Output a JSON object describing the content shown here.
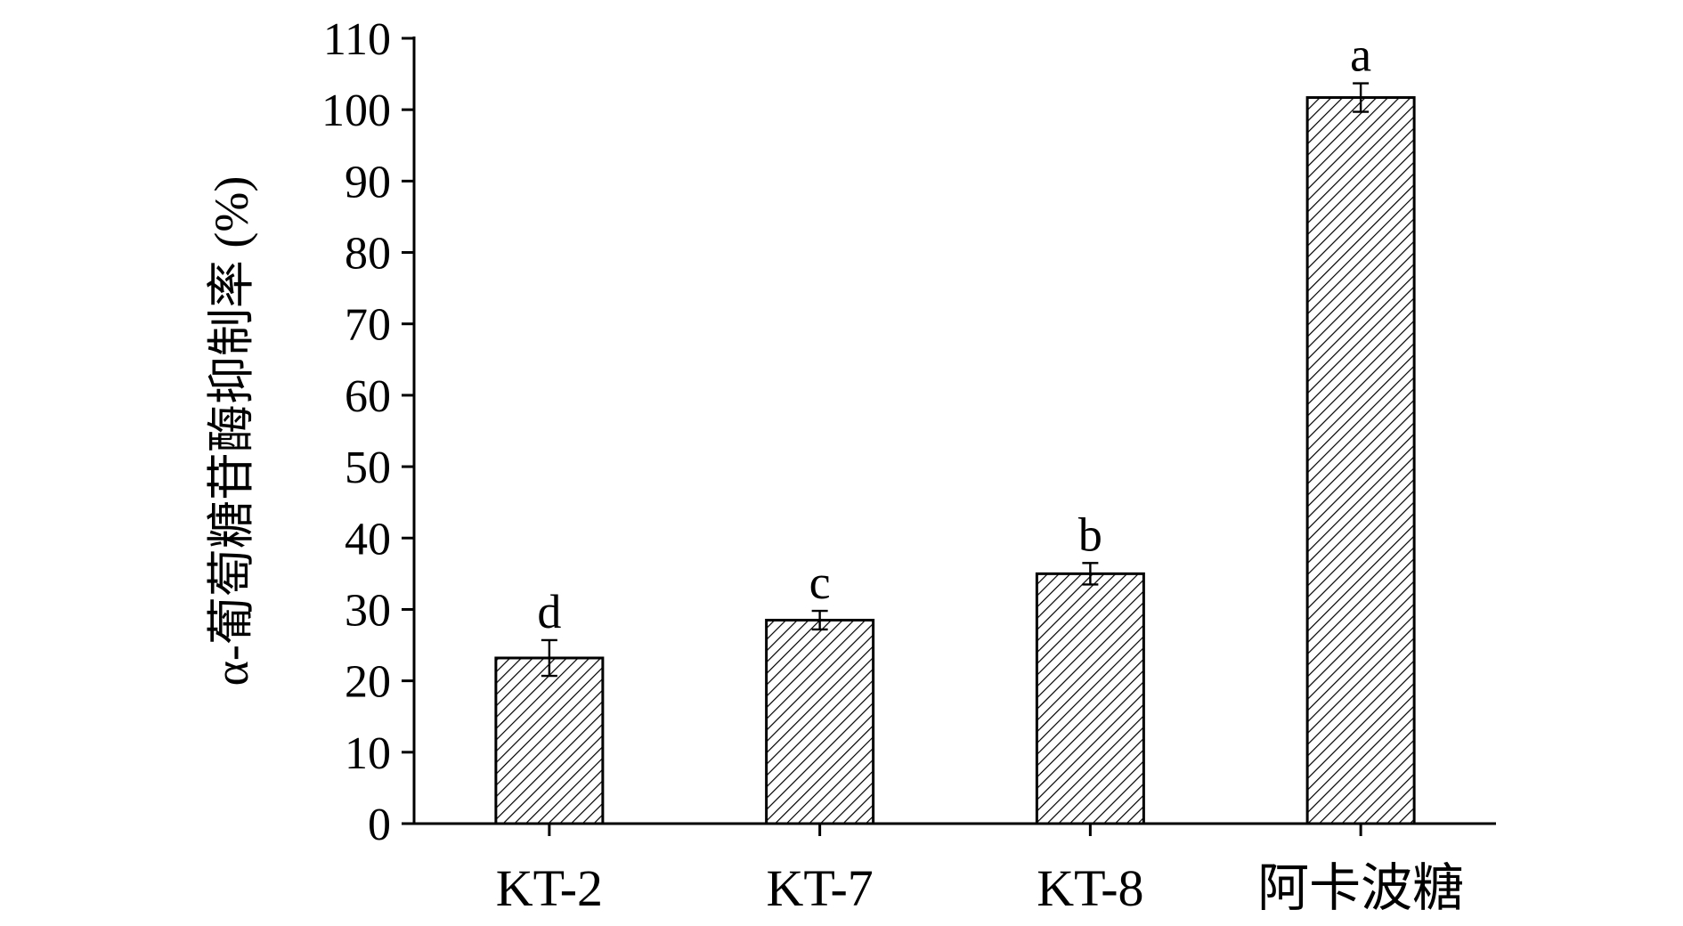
{
  "chart_data": {
    "type": "bar",
    "categories": [
      "KT-2",
      "KT-7",
      "KT-8",
      "阿卡波糖"
    ],
    "values": [
      23.2,
      28.5,
      35.0,
      101.7
    ],
    "errors": [
      2.5,
      1.3,
      1.5,
      2.0
    ],
    "significance": [
      "d",
      "c",
      "b",
      "a"
    ],
    "ylabel": "α-葡萄糖苷酶抑制率 (%)",
    "xlabel": "",
    "ylim": [
      0,
      110
    ],
    "yticks": [
      0,
      10,
      20,
      30,
      40,
      50,
      60,
      70,
      80,
      90,
      100,
      110
    ],
    "bar_fill": "hatched",
    "bar_color": "#000000",
    "grid": false,
    "legend": "none"
  }
}
